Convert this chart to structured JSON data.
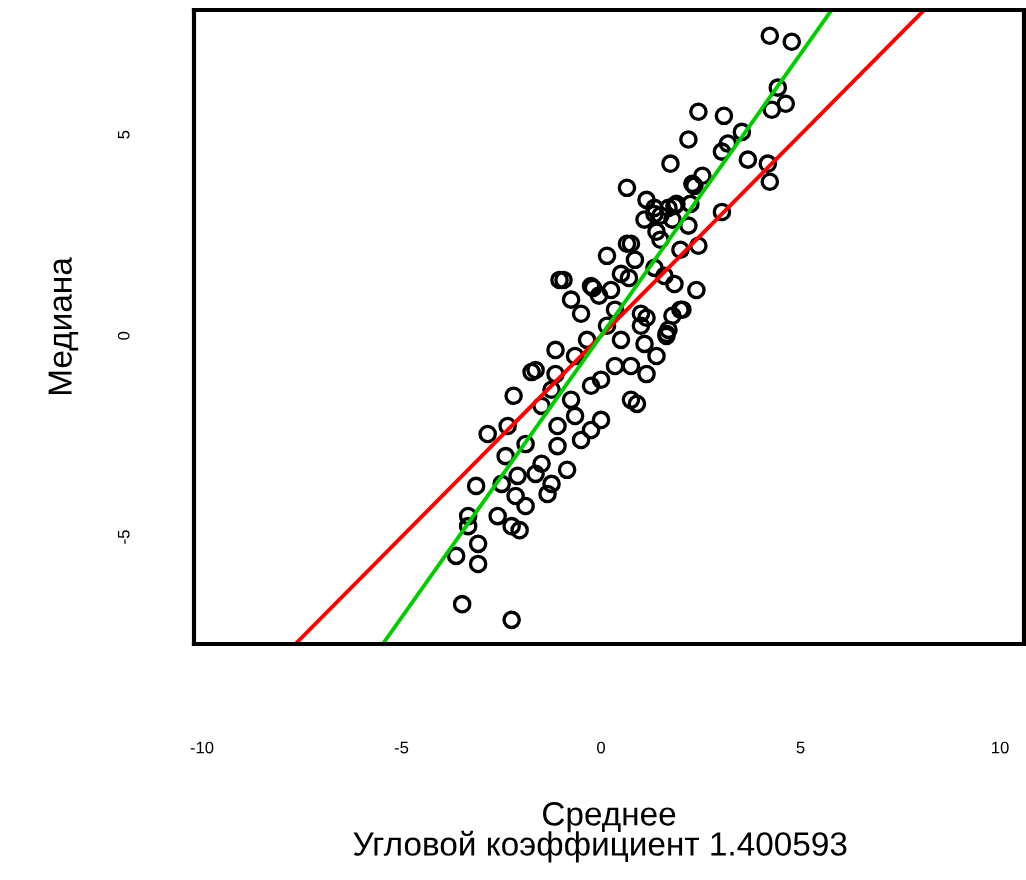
{
  "chart_data": {
    "type": "scatter",
    "xlabel": "Среднее",
    "ylabel": "Медиана",
    "annotations": [
      "Угловой коэффициент 1.400593"
    ],
    "xlim": [
      -10.2,
      10.6
    ],
    "ylim": [
      -7.66,
      8.1
    ],
    "xticks": [
      -10,
      -5,
      0,
      5,
      10
    ],
    "yticks": [
      -5,
      0,
      5
    ],
    "grid": false,
    "series": [
      {
        "marker": "circle",
        "color": "#000000",
        "x": [
          4.23,
          4.78,
          4.43,
          4.63,
          4.28,
          2.44,
          3.08,
          3.53,
          2.19,
          3.18,
          3.03,
          3.68,
          4.18,
          4.23,
          1.74,
          2.54,
          2.29,
          0.65,
          2.24,
          3.03,
          1.14,
          1.34,
          1.69,
          1.49,
          1.89,
          1.79,
          2.19,
          1.39,
          1.49,
          2.44,
          1.99,
          0.65,
          0.85,
          1.34,
          1.59,
          2.39,
          -1.04,
          -0.94,
          -0.2,
          0.25,
          0.7,
          0.35,
          1.14,
          1.79,
          1.69,
          -0.05,
          -0.5,
          -1.14,
          -1.74,
          -2.19,
          -2.84,
          -2.34,
          -2.39,
          -1.89,
          -3.13,
          -2.49,
          -2.14,
          -1.89,
          -3.33,
          -3.33,
          -3.63,
          -3.08,
          -3.08,
          -2.59,
          -2.24,
          -2.04,
          -3.48,
          -2.24,
          -1.34,
          -0.85,
          -1.09,
          -0.5,
          0,
          -1.09,
          -1.49,
          -0.25,
          -0.65,
          0.75,
          0.9,
          1.14,
          1.39,
          1.64,
          2.04,
          1.09,
          0.75,
          0.35,
          0,
          -0.25,
          -0.75,
          -1.24,
          -1.49,
          -1.14,
          -1.64,
          -0.65,
          -0.35,
          0.15,
          0.5,
          1.0,
          -2.09,
          -1.64,
          -1.24,
          -0.75,
          -0.25,
          0.15,
          0.75,
          1.34,
          1.84,
          2.34,
          1.09,
          1.84,
          1.99,
          1.64,
          1.0,
          0.5
        ],
        "values": [
          7.46,
          7.31,
          6.17,
          5.77,
          5.62,
          5.57,
          5.47,
          5.07,
          4.88,
          4.78,
          4.58,
          4.38,
          4.28,
          3.83,
          4.28,
          3.98,
          3.78,
          3.68,
          3.28,
          3.08,
          3.38,
          3.18,
          3.18,
          2.99,
          3.28,
          2.89,
          2.74,
          2.59,
          2.39,
          2.24,
          2.14,
          2.29,
          1.89,
          1.69,
          1.49,
          1.14,
          1.39,
          1.39,
          1.19,
          1.14,
          1.44,
          0.65,
          0.45,
          0.5,
          0.15,
          1.0,
          0.55,
          -0.35,
          -0.9,
          -1.49,
          -2.44,
          -2.24,
          -2.99,
          -2.69,
          -3.73,
          -3.68,
          -3.98,
          -4.23,
          -4.48,
          -4.73,
          -5.47,
          -5.17,
          -5.67,
          -4.48,
          -4.73,
          -4.83,
          -6.67,
          -7.06,
          -3.93,
          -3.33,
          -2.74,
          -2.59,
          -2.09,
          -2.24,
          -3.18,
          -2.34,
          -1.99,
          -1.59,
          -1.69,
          -0.95,
          -0.5,
          0,
          0.65,
          -0.2,
          -0.75,
          -0.75,
          -1.09,
          -1.24,
          -1.59,
          -1.34,
          -1.74,
          -0.95,
          -0.85,
          -0.5,
          -0.1,
          0.25,
          -0.1,
          0.25,
          -3.48,
          -3.43,
          -3.68,
          0.9,
          1.24,
          1.99,
          2.29,
          3.03,
          3.23,
          3.73,
          2.89,
          1.29,
          0.65,
          0.05,
          0.55,
          1.54
        ]
      },
      {
        "type": "line",
        "color": "#ff0000",
        "x": [
          -7.66,
          8.1
        ],
        "values": [
          -7.66,
          8.1
        ]
      },
      {
        "type": "line",
        "color": "#00cc00",
        "x": [
          -5.47,
          5.78
        ],
        "values": [
          -7.66,
          8.1
        ]
      }
    ]
  }
}
